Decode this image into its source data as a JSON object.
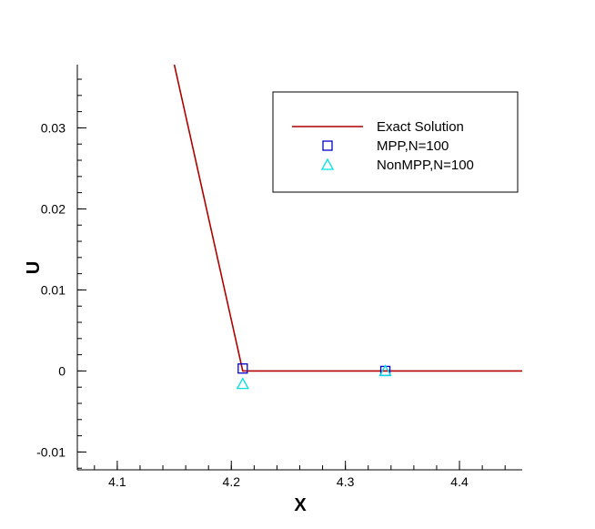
{
  "chart_data": {
    "type": "line",
    "xlabel": "X",
    "ylabel": "U",
    "xlim": [
      4.065,
      4.455
    ],
    "ylim": [
      -0.0122,
      0.0378
    ],
    "x_ticks": [
      4.1,
      4.2,
      4.3,
      4.4
    ],
    "x_tick_labels": [
      "4.1",
      "4.2",
      "4.3",
      "4.4"
    ],
    "y_ticks": [
      -0.01,
      0,
      0.01,
      0.02,
      0.03
    ],
    "y_tick_labels": [
      "-0.01",
      "0",
      "0.01",
      "0.02",
      "0.03"
    ],
    "grid": false,
    "legend_position": "top-right",
    "series": [
      {
        "name": "Exact Solution",
        "style": "line",
        "color": "#b00000",
        "x": [
          4.15,
          4.21,
          4.455
        ],
        "y": [
          0.0378,
          0.0,
          0.0
        ]
      },
      {
        "name": "MPP,N=100",
        "style": "square-marker",
        "color": "#0000cc",
        "x": [
          4.21,
          4.335
        ],
        "y": [
          0.0003,
          0.0
        ]
      },
      {
        "name": "NonMPP,N=100",
        "style": "triangle-marker",
        "color": "#00e0e0",
        "x": [
          4.21,
          4.335
        ],
        "y": [
          -0.0016,
          0.0
        ]
      }
    ]
  }
}
